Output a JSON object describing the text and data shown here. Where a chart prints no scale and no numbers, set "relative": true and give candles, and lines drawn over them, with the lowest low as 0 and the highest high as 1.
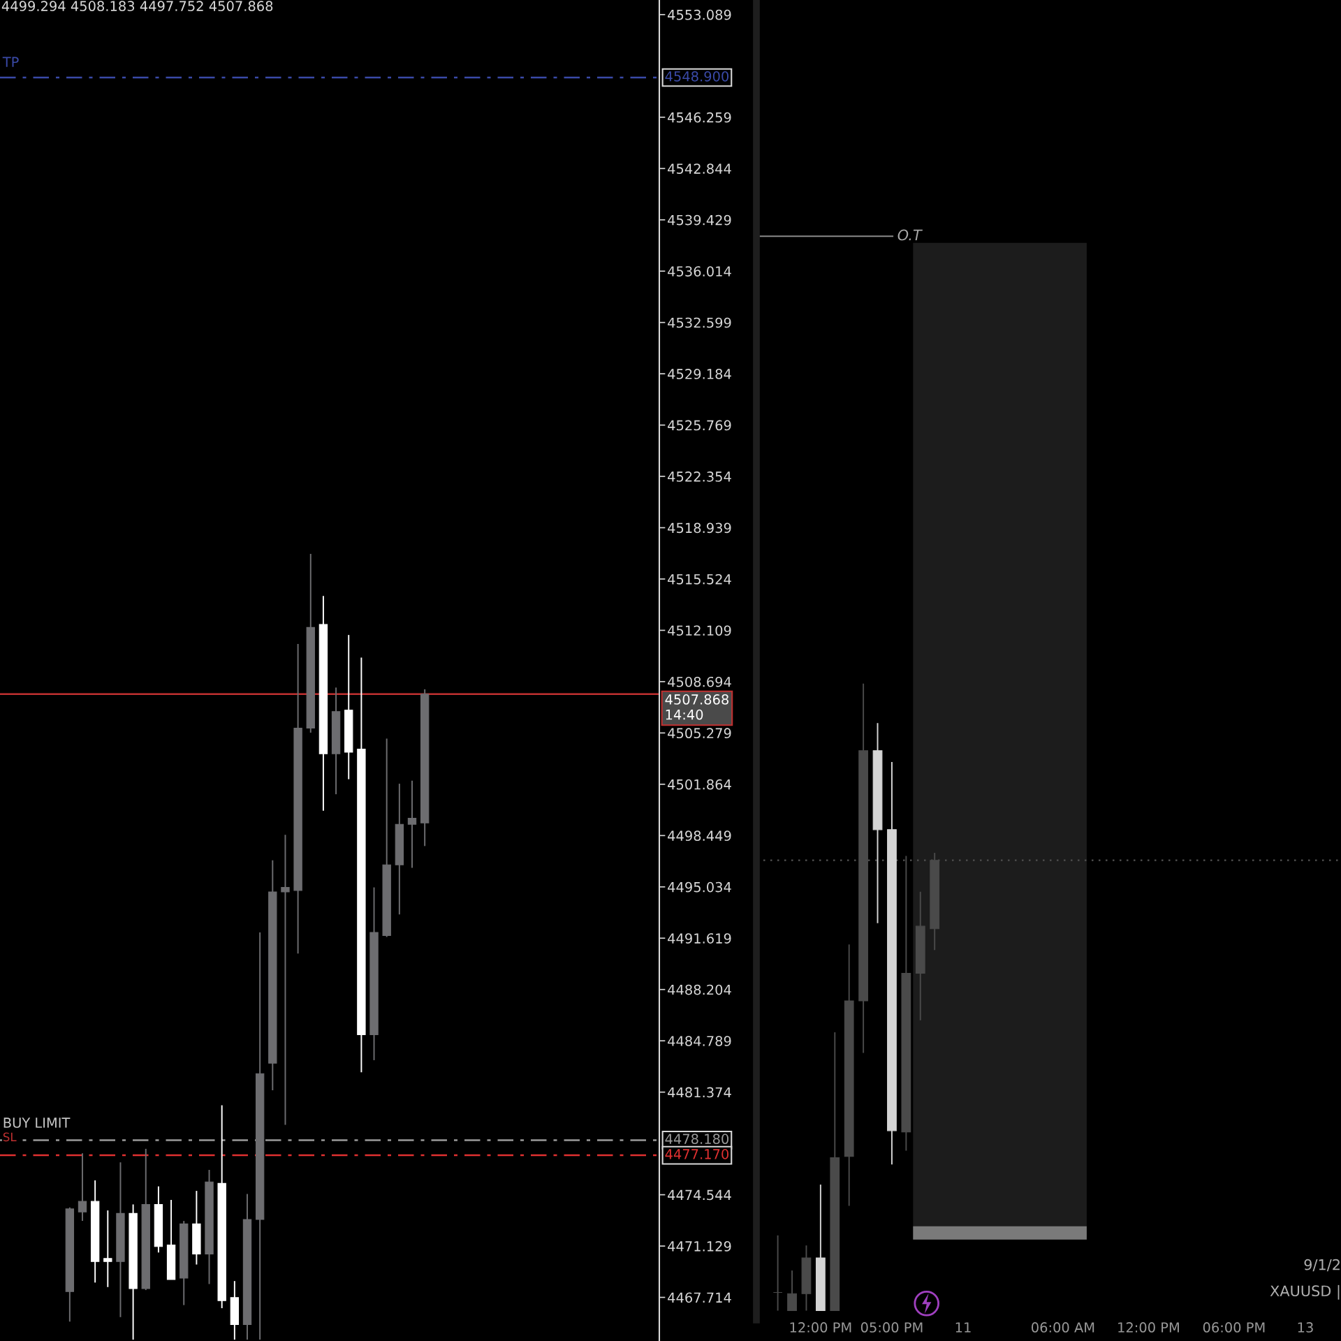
{
  "chart_data": [
    {
      "type": "candlestick",
      "categories": [
        null,
        null,
        null,
        null,
        null,
        null,
        null,
        null,
        null,
        null,
        null,
        null,
        null,
        null,
        null,
        null,
        null,
        null,
        null,
        null,
        null,
        null,
        null,
        null,
        null,
        null,
        null,
        null,
        null,
        null,
        null,
        null,
        null,
        null,
        null,
        null,
        null,
        null,
        null,
        null,
        null,
        null,
        null,
        null,
        null,
        null,
        null,
        null,
        null,
        null,
        null,
        null
      ],
      "ohlc": [
        null,
        null,
        null,
        null,
        null,
        [
          4468.1,
          4473.7,
          4466.1,
          4473.6
        ],
        [
          4473.4,
          4477.3,
          4472.8,
          4474.1
        ],
        [
          4474.1,
          4475.5,
          4468.7,
          4470.1
        ],
        [
          4470.3,
          4473.5,
          4468.4,
          4470.1
        ],
        [
          4470.1,
          4476.7,
          4466.4,
          4473.3
        ],
        [
          4473.3,
          4473.9,
          4464.9,
          4468.3
        ],
        [
          4468.3,
          4477.6,
          4468.2,
          4473.9
        ],
        [
          4473.9,
          4475.1,
          4470.7,
          4471.1
        ],
        [
          4471.2,
          4474.2,
          4468.9,
          4468.9
        ],
        [
          4469.0,
          4472.8,
          4467.2,
          4472.6
        ],
        [
          4472.6,
          4474.8,
          4469.9,
          4470.6
        ],
        [
          4470.6,
          4476.2,
          4468.6,
          4475.4
        ],
        [
          4475.3,
          4480.5,
          4467.0,
          4467.5
        ],
        [
          4467.7,
          4468.8,
          4464.9,
          4465.9
        ],
        [
          4465.9,
          4474.6,
          4464.9,
          4472.9
        ],
        [
          4472.9,
          4492.0,
          4464.9,
          4482.6
        ],
        [
          4483.3,
          4496.8,
          4481.5,
          4494.7
        ],
        [
          4494.7,
          4498.5,
          4479.2,
          4495.0
        ],
        [
          4494.8,
          4511.2,
          4490.6,
          4505.6
        ],
        [
          4505.6,
          4517.2,
          4505.3,
          4512.3
        ],
        [
          4512.5,
          4514.4,
          4500.1,
          4503.9
        ],
        [
          4503.9,
          4508.3,
          4501.2,
          4506.7
        ],
        [
          4506.8,
          4511.8,
          4502.2,
          4504.0
        ],
        [
          4504.2,
          4510.3,
          4482.7,
          4485.2
        ],
        [
          4485.2,
          4495.0,
          4483.5,
          4492.0
        ],
        [
          4491.8,
          4504.9,
          4491.7,
          4496.5
        ],
        [
          4496.5,
          4501.9,
          4493.2,
          4499.2
        ],
        [
          4499.2,
          4502.1,
          4496.3,
          4499.6
        ],
        [
          4499.294,
          4508.183,
          4497.752,
          4507.868
        ],
        null,
        null,
        null,
        null,
        null,
        null,
        null,
        null,
        null,
        null,
        null,
        null,
        null,
        null,
        null,
        null,
        null,
        null
      ],
      "colors": [
        null,
        null,
        null,
        null,
        null,
        "#6d6d70",
        "#6d6d70",
        "#ffffff",
        "#ffffff",
        "#6d6d70",
        "#ffffff",
        "#6d6d70",
        "#ffffff",
        "#ffffff",
        "#6d6d70",
        "#ffffff",
        "#6d6d70",
        "#ffffff",
        "#ffffff",
        "#6d6d70",
        "#6d6d70",
        "#6d6d70",
        "#6d6d70",
        "#6d6d70",
        "#6d6d70",
        "#ffffff",
        "#6d6d70",
        "#ffffff",
        "#ffffff",
        "#6d6d70",
        "#6d6d70",
        "#6d6d70",
        "#6d6d70",
        "#6d6d70",
        null,
        null,
        null,
        null,
        null,
        null,
        null,
        null,
        null,
        null,
        null,
        null,
        null,
        null,
        null,
        null,
        null,
        null
      ],
      "ylim": [
        4464.81,
        4554.06
      ],
      "yticks": [
        4467.714,
        4471.129,
        4474.544,
        4481.374,
        4484.789,
        4488.204,
        4491.619,
        4495.034,
        4498.449,
        4501.864,
        4505.279,
        4508.694,
        4512.109,
        4515.524,
        4518.939,
        4522.354,
        4525.769,
        4529.184,
        4532.599,
        4536.014,
        4539.429,
        4542.844,
        4546.259,
        4553.089
      ],
      "tick_labels": "y",
      "ref_lines": [
        {
          "axis": "y",
          "value": 4548.9,
          "label": "4548.900",
          "color": "#3a4aa8",
          "line_style": "dashed"
        },
        {
          "axis": "y",
          "value": 4507.868,
          "label": "4507.868\n14:40",
          "color": "#c03030",
          "line_style": "solid"
        },
        {
          "axis": "y",
          "value": 4478.18,
          "label": "4478.180",
          "color": "#9a9a9a",
          "line_style": "dashed"
        },
        {
          "axis": "y",
          "value": 4477.17,
          "label": "4477.170",
          "color": "#e03030",
          "line_style": "dashed"
        }
      ],
      "annotations": [
        "4499.294 4508.183 4497.752 4507.868",
        "TP",
        "BUY LIMIT",
        "SL"
      ]
    },
    {
      "type": "candlestick",
      "relative": true,
      "categories": [
        null,
        null,
        null,
        null,
        "12:00 PM",
        null,
        null,
        null,
        null,
        "05:00 PM",
        null,
        null,
        null,
        null,
        "11",
        null,
        null,
        null,
        null,
        null,
        null,
        "06:00 AM",
        null,
        null,
        null,
        null,
        null,
        "12:00 PM",
        null,
        null,
        null,
        null,
        null,
        "06:00 PM",
        null,
        null,
        null,
        null,
        "13",
        null,
        null
      ],
      "ohlc": [
        null,
        [
          0.029,
          0.12,
          0,
          0.029
        ],
        [
          0,
          0.064,
          0,
          0.027
        ],
        [
          0.027,
          0.104,
          0,
          0.084
        ],
        [
          0.084,
          0.201,
          0,
          0
        ],
        [
          0,
          0.444,
          0,
          0.244
        ],
        [
          0.246,
          0.584,
          0.167,
          0.494
        ],
        [
          0.494,
          1,
          0.411,
          0.893
        ],
        [
          0.893,
          0.937,
          0.618,
          0.767
        ],
        [
          0.767,
          0.875,
          0.233,
          0.287
        ],
        [
          0.285,
          0.725,
          0.255,
          0.538
        ],
        [
          0.538,
          0.668,
          0.463,
          0.613
        ],
        [
          0.609,
          0.73,
          0.575,
          0.718
        ],
        null,
        null,
        null,
        null,
        null,
        null,
        null,
        null,
        null,
        null,
        null,
        null,
        null,
        null,
        null,
        null,
        null,
        null,
        null,
        null,
        null,
        null,
        null,
        null,
        null,
        null,
        null,
        null
      ],
      "colors": [
        null,
        "#4a4a4a",
        "#4a4a4a",
        "#4a4a4a",
        "#d4d4d4",
        "#4a4a4a",
        "#4a4a4a",
        "#4a4a4a",
        "#d4d4d4",
        "#d4d4d4",
        "#4a4a4a",
        "#4a4a4a",
        "#4a4a4a",
        null,
        null,
        null,
        null,
        null,
        null,
        null,
        null,
        null,
        null,
        null,
        null,
        null,
        null,
        null,
        null,
        null,
        null,
        null,
        null,
        null,
        null,
        null,
        null,
        null,
        null,
        null,
        null
      ],
      "ref_lines": [
        {
          "axis": "y",
          "value": 0.718,
          "label": null,
          "color": "#4a4a4a",
          "line_style": "dotted"
        }
      ],
      "annotations": [
        "O.T",
        "9/1/2",
        "XAUUSD |"
      ]
    }
  ]
}
